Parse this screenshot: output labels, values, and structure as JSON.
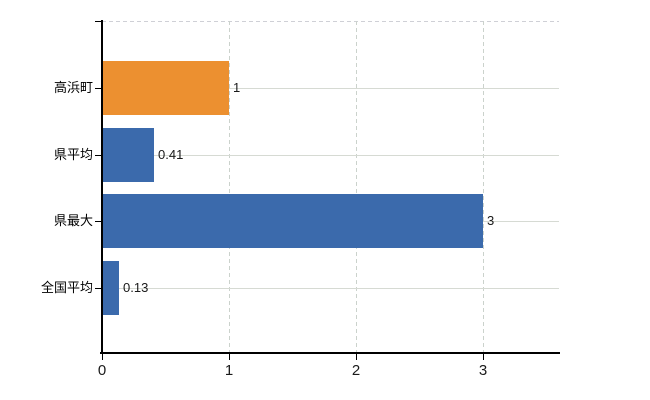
{
  "chart_data": {
    "type": "bar",
    "orientation": "horizontal",
    "title": "",
    "xlabel": "",
    "ylabel": "",
    "categories": [
      "高浜町",
      "県平均",
      "県最大",
      "全国平均"
    ],
    "values": [
      1,
      0.41,
      3,
      0.13
    ],
    "value_labels": [
      "1",
      "0.41",
      "3",
      "0.13"
    ],
    "bar_color_keys": [
      "orange",
      "blue",
      "blue",
      "blue"
    ],
    "x_ticks": [
      0,
      1,
      2,
      3
    ],
    "x_tick_labels": [
      "0",
      "1",
      "2",
      "3"
    ],
    "xlim": [
      0,
      3.6
    ],
    "grid": true,
    "grid_horizontal_style": "solid",
    "grid_vertical_style": "dashed",
    "legend": false
  },
  "colors": {
    "orange": "#EC9030",
    "blue": "#3B6AAC",
    "axis": "#000000",
    "grid_h": "#D6DAD3",
    "grid_v": "#CBD2CC",
    "top_border": "#CFD0D6",
    "text": "#1a1a1a"
  }
}
